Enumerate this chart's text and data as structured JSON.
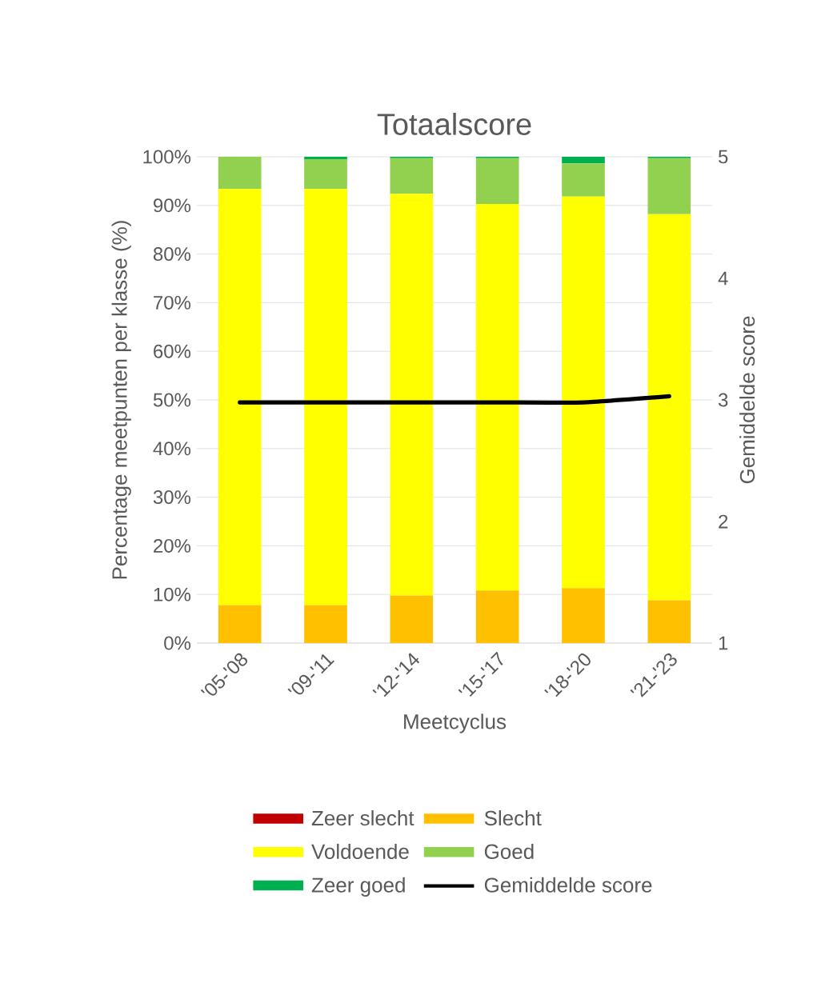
{
  "chart_data": {
    "type": "bar",
    "stacked": true,
    "title": "Totaalscore",
    "xlabel": "Meetcyclus",
    "ylabel": "Percentage meetpunten per klasse (%)",
    "y2label": "Gemiddelde score",
    "categories": [
      "'05-'08",
      "'09-'11",
      "'12-'14",
      "'15-'17",
      "'18-'20",
      "'21-'23"
    ],
    "series": [
      {
        "name": "Zeer slecht",
        "color": "#c00000",
        "values": [
          0,
          0,
          0,
          0,
          0,
          0
        ]
      },
      {
        "name": "Slecht",
        "color": "#ffc000",
        "values": [
          7.8,
          7.8,
          9.8,
          10.8,
          11.3,
          8.8
        ]
      },
      {
        "name": "Voldoende",
        "color": "#ffff00",
        "values": [
          85.6,
          85.6,
          82.6,
          79.5,
          80.5,
          79.4
        ]
      },
      {
        "name": "Goed",
        "color": "#92d050",
        "values": [
          6.6,
          6.1,
          7.3,
          9.4,
          6.8,
          11.5
        ]
      },
      {
        "name": "Zeer goed",
        "color": "#00b050",
        "values": [
          0,
          0.5,
          0.3,
          0.3,
          1.4,
          0.3
        ]
      },
      {
        "name": "Gemiddelde score",
        "color": "#000000",
        "type": "line",
        "axis": "y2",
        "values": [
          2.98,
          2.98,
          2.98,
          2.98,
          2.98,
          3.03
        ]
      }
    ],
    "ylim": [
      0,
      100
    ],
    "yticks": [
      {
        "value": 0,
        "label": "0%"
      },
      {
        "value": 10,
        "label": "10%"
      },
      {
        "value": 20,
        "label": "20%"
      },
      {
        "value": 30,
        "label": "30%"
      },
      {
        "value": 40,
        "label": "40%"
      },
      {
        "value": 50,
        "label": "50%"
      },
      {
        "value": 60,
        "label": "60%"
      },
      {
        "value": 70,
        "label": "70%"
      },
      {
        "value": 80,
        "label": "80%"
      },
      {
        "value": 90,
        "label": "90%"
      },
      {
        "value": 100,
        "label": "100%"
      }
    ],
    "y2lim": [
      1,
      5
    ],
    "y2ticks": [
      1,
      2,
      3,
      4,
      5
    ],
    "grid": "y",
    "legend": "bottom"
  }
}
